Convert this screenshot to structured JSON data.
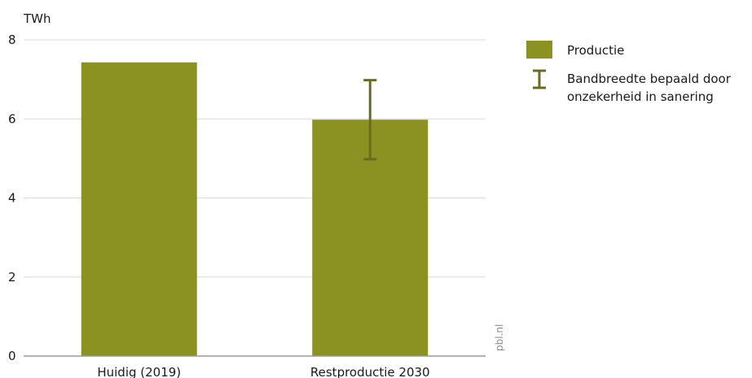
{
  "chart_data": {
    "type": "bar",
    "unit_label": "TWh",
    "categories": [
      "Huidig (2019)",
      "Restproductie 2030"
    ],
    "series": [
      {
        "name": "Productie",
        "values": [
          7.43,
          5.98
        ],
        "color": "#8b9222"
      }
    ],
    "error_bars": [
      null,
      {
        "low": 4.98,
        "high": 6.98
      }
    ],
    "error_bar_color": "#6b6b1f",
    "ylim": [
      0,
      8
    ],
    "yticks": [
      "0",
      "2",
      "4",
      "6",
      "8"
    ],
    "grid": true,
    "legend": {
      "placement": "top-right",
      "items": [
        {
          "kind": "swatch",
          "label": "Productie",
          "color": "#8b9222"
        },
        {
          "kind": "errorbar",
          "label_lines": [
            "Bandbreedte bepaald door",
            "onzekerheid in sanering"
          ],
          "color": "#6b6b1f"
        }
      ]
    },
    "source": "pbl.nl",
    "gridline_color": "#dcdcdc",
    "axis_color": "#9a9a9a"
  }
}
